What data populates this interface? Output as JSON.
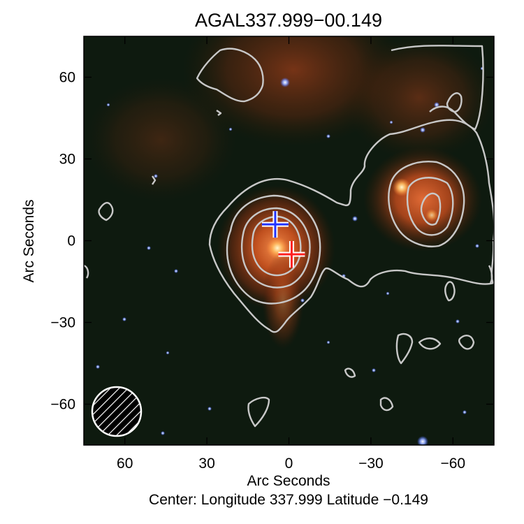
{
  "figure": {
    "title": "AGAL337.999−00.149",
    "xlabel": "Arc Seconds",
    "ylabel": "Arc Seconds",
    "center_caption": "Center:  Longitude 337.999 Latitude −0.149"
  },
  "chart_data": {
    "type": "image-with-contours",
    "x_range": [
      75,
      -75
    ],
    "y_range": [
      -75,
      75
    ],
    "x_ticks": [
      {
        "value": 60,
        "label": "60"
      },
      {
        "value": 30,
        "label": "30"
      },
      {
        "value": 0,
        "label": "0"
      },
      {
        "value": -30,
        "label": "−30"
      },
      {
        "value": -60,
        "label": "−60"
      }
    ],
    "y_ticks": [
      {
        "value": 60,
        "label": "60"
      },
      {
        "value": 30,
        "label": "30"
      },
      {
        "value": 0,
        "label": "0"
      },
      {
        "value": -30,
        "label": "−30"
      },
      {
        "value": -60,
        "label": "−60"
      }
    ],
    "markers": [
      {
        "name": "blue-cross",
        "x": 5,
        "y": 6,
        "color": "#2233ff"
      },
      {
        "name": "red-cross",
        "x": -1,
        "y": -5,
        "color": "#ff2020"
      }
    ],
    "beam": {
      "x": 62,
      "y": -62,
      "radius": 9
    },
    "colors": {
      "background": "#0e1a0f",
      "emission": "#c2501f",
      "contour": "#c8c8c8",
      "stars": "#6e8cff"
    }
  }
}
